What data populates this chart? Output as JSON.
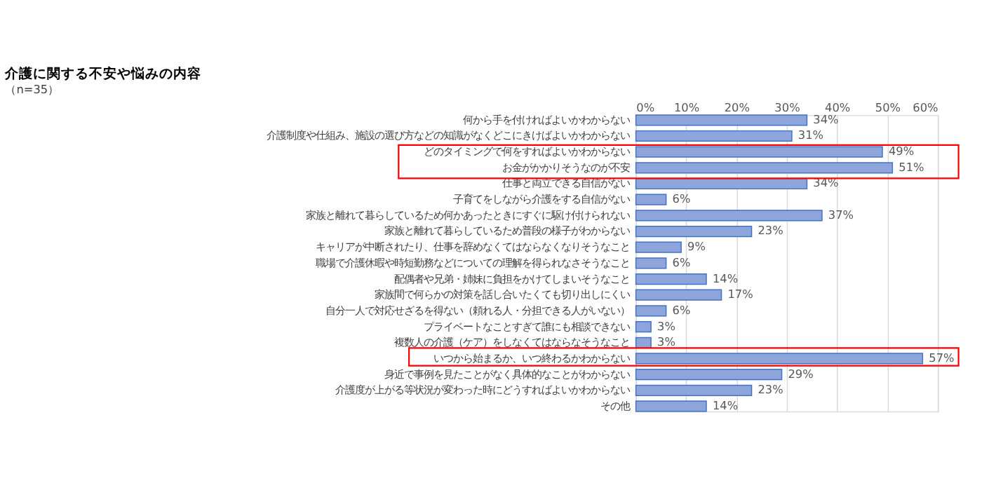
{
  "chart_data": {
    "type": "bar",
    "orientation": "horizontal",
    "title": "介護に関する不安や悩みの内容",
    "subtitle": "（n=35）",
    "categories": [
      "何から手を付ければよいかわからない",
      "介護制度や仕組み、施設の選び方などの知識がなくどこにきけばよいかわからない",
      "どのタイミングで何をすればよいかわからない",
      "お金がかかりそうなのが不安",
      "仕事と両立できる自信がない",
      "子育てをしながら介護をする自信がない",
      "家族と離れて暮らしているため何かあったときにすぐに駆け付けられない",
      "家族と離れて暮らしているため普段の様子がわからない",
      "キャリアが中断されたり、仕事を辞めなくてはならなくなりそうなこと",
      "職場で介護休暇や時短勤務などについての理解を得られなさそうなこと",
      "配偶者や兄弟・姉妹に負担をかけてしまいそうなこと",
      "家族間で何らかの対策を話し合いたくても切り出しにくい",
      "自分一人で対応せざるを得ない（頼れる人・分担できる人がいない）",
      "プライベートなことすぎて誰にも相談できない",
      "複数人の介護（ケア）をしなくてはならなそうなこと",
      "いつから始まるか、いつ終わるかわからない",
      "身近で事例を見たことがなく具体的なことがわからない",
      "介護度が上がる等状況が変わった時にどうすればよいかわからない",
      "その他"
    ],
    "series": [
      {
        "color": "#8ea5dc",
        "values": [
          34,
          31,
          49,
          51,
          34,
          6,
          37,
          23,
          9,
          6,
          14,
          17,
          6,
          3,
          3,
          57,
          29,
          23,
          14
        ],
        "value_labels": [
          "34%",
          "31%",
          "49%",
          "51%",
          "34%",
          "6%",
          "37%",
          "23%",
          "9%",
          "6%",
          "14%",
          "17%",
          "6%",
          "3%",
          "3%",
          "57%",
          "29%",
          "23%",
          "14%"
        ]
      }
    ],
    "xlim": [
      0,
      60
    ],
    "xticks": [
      {
        "value": 0,
        "label": "0%"
      },
      {
        "value": 10,
        "label": "10%"
      },
      {
        "value": 20,
        "label": "20%"
      },
      {
        "value": 30,
        "label": "30%"
      },
      {
        "value": 40,
        "label": "40%"
      },
      {
        "value": 50,
        "label": "50%"
      },
      {
        "value": 60,
        "label": "60%"
      }
    ],
    "grid": "x"
  }
}
